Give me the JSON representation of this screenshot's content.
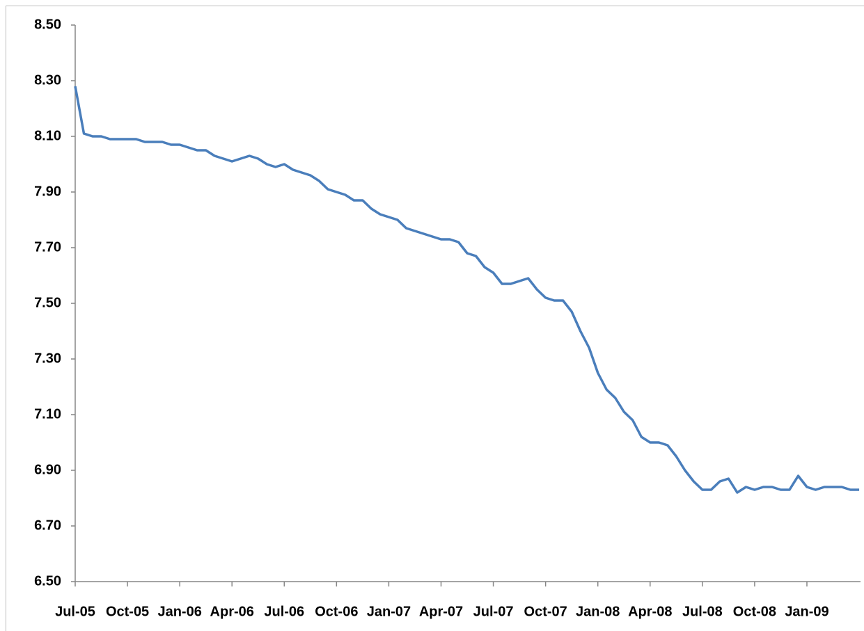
{
  "chart_data": {
    "type": "line",
    "categories": [
      "Jul-05",
      null,
      null,
      null,
      null,
      null,
      "Oct-05",
      null,
      null,
      null,
      null,
      null,
      "Jan-06",
      null,
      null,
      null,
      null,
      null,
      "Apr-06",
      null,
      null,
      null,
      null,
      null,
      "Jul-06",
      null,
      null,
      null,
      null,
      null,
      "Oct-06",
      null,
      null,
      null,
      null,
      null,
      "Jan-07",
      null,
      null,
      null,
      null,
      null,
      "Apr-07",
      null,
      null,
      null,
      null,
      null,
      "Jul-07",
      null,
      null,
      null,
      null,
      null,
      "Oct-07",
      null,
      null,
      null,
      null,
      null,
      "Jan-08",
      null,
      null,
      null,
      null,
      null,
      "Apr-08",
      null,
      null,
      null,
      null,
      null,
      "Jul-08",
      null,
      null,
      null,
      null,
      null,
      "Oct-08",
      null,
      null,
      null,
      null,
      null,
      "Jan-09",
      null,
      null,
      null,
      null,
      null,
      null
    ],
    "values": [
      8.28,
      8.11,
      8.1,
      8.1,
      8.09,
      8.09,
      8.09,
      8.09,
      8.08,
      8.08,
      8.08,
      8.07,
      8.07,
      8.06,
      8.05,
      8.05,
      8.03,
      8.02,
      8.01,
      8.02,
      8.03,
      8.02,
      8.0,
      7.99,
      8.0,
      7.98,
      7.97,
      7.96,
      7.94,
      7.91,
      7.9,
      7.89,
      7.87,
      7.87,
      7.84,
      7.82,
      7.81,
      7.8,
      7.77,
      7.76,
      7.75,
      7.74,
      7.73,
      7.73,
      7.72,
      7.68,
      7.67,
      7.63,
      7.61,
      7.57,
      7.57,
      7.58,
      7.59,
      7.55,
      7.52,
      7.51,
      7.51,
      7.47,
      7.4,
      7.34,
      7.25,
      7.19,
      7.16,
      7.11,
      7.08,
      7.02,
      7.0,
      7.0,
      6.99,
      6.95,
      6.9,
      6.86,
      6.83,
      6.83,
      6.86,
      6.87,
      6.82,
      6.84,
      6.83,
      6.84,
      6.84,
      6.83,
      6.83,
      6.88,
      6.84,
      6.83,
      6.84,
      6.84,
      6.84,
      6.83,
      6.83
    ],
    "color": "#4a7ebb",
    "ylim": [
      6.5,
      8.5
    ],
    "yticks": [
      {
        "value": 6.5,
        "label": "6.50"
      },
      {
        "value": 6.7,
        "label": "6.70"
      },
      {
        "value": 6.9,
        "label": "6.90"
      },
      {
        "value": 7.1,
        "label": "7.10"
      },
      {
        "value": 7.3,
        "label": "7.30"
      },
      {
        "value": 7.5,
        "label": "7.50"
      },
      {
        "value": 7.7,
        "label": "7.70"
      },
      {
        "value": 7.9,
        "label": "7.90"
      },
      {
        "value": 8.1,
        "label": "8.10"
      },
      {
        "value": 8.3,
        "label": "8.30"
      },
      {
        "value": 8.5,
        "label": "8.50"
      }
    ],
    "grid": false
  }
}
